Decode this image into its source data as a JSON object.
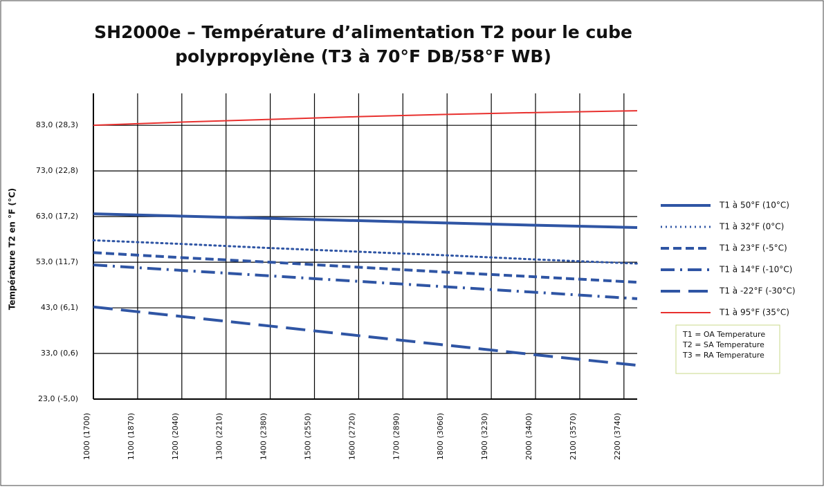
{
  "chart_data": {
    "type": "line",
    "title": [
      "SH2000e – Température d’alimentation T2 pour le cube",
      "polypropylène (T3 à 70°F DB/58°F WB)"
    ],
    "y_label": "Température T2 en °F (°C)",
    "x": [
      1000,
      1200,
      1400,
      1600,
      1800,
      2000,
      2230
    ],
    "xlim": [
      1000,
      2230
    ],
    "xticks": [
      {
        "value": 1000,
        "label": "1000 (1700)"
      },
      {
        "value": 1100,
        "label": "1100 (1870)"
      },
      {
        "value": 1200,
        "label": "1200 (2040)"
      },
      {
        "value": 1300,
        "label": "1300 (2210)"
      },
      {
        "value": 1400,
        "label": "1400 (2380)"
      },
      {
        "value": 1500,
        "label": "1500 (2550)"
      },
      {
        "value": 1600,
        "label": "1600 (2720)"
      },
      {
        "value": 1700,
        "label": "1700 (2890)"
      },
      {
        "value": 1800,
        "label": "1800 (3060)"
      },
      {
        "value": 1900,
        "label": "1900 (3230)"
      },
      {
        "value": 2000,
        "label": "2000 (3400)"
      },
      {
        "value": 2100,
        "label": "2100 (3570)"
      },
      {
        "value": 2200,
        "label": "2200 (3740)"
      }
    ],
    "ylim": [
      23,
      90
    ],
    "yticks": [
      {
        "value": 23,
        "label": "23,0 (-5,0)"
      },
      {
        "value": 33,
        "label": "33,0 (0,6)"
      },
      {
        "value": 43,
        "label": "43,0 (6,1)"
      },
      {
        "value": 53,
        "label": "53,0 (11,7)"
      },
      {
        "value": 63,
        "label": "63,0 (17,2)"
      },
      {
        "value": 73,
        "label": "73,0 (22,8)"
      },
      {
        "value": 83,
        "label": "83,0 (28,3)"
      }
    ],
    "grid": true,
    "legend": "right",
    "series": [
      {
        "name": "T1 à 50°F (10°C)",
        "color": "#2f55a4",
        "dash": "solid",
        "values": [
          63.6,
          63.1,
          62.6,
          62.1,
          61.6,
          61.1,
          60.6
        ]
      },
      {
        "name": "T1 à 32°F (0°C)",
        "color": "#2f55a4",
        "dash": "dotted",
        "values": [
          57.8,
          57.0,
          56.1,
          55.3,
          54.5,
          53.6,
          52.7
        ]
      },
      {
        "name": "T1 à 23°F (-5°C)",
        "color": "#2f55a4",
        "dash": "dashed",
        "values": [
          55.1,
          54.0,
          53.0,
          51.9,
          50.8,
          49.8,
          48.6
        ]
      },
      {
        "name": "T1 à 14°F (-10°C)",
        "color": "#2f55a4",
        "dash": "dashdot",
        "values": [
          52.4,
          51.2,
          50.0,
          48.8,
          47.6,
          46.4,
          45.0
        ]
      },
      {
        "name": "T1 à -22°F (-30°C)",
        "color": "#2f55a4",
        "dash": "longdash",
        "values": [
          43.2,
          41.1,
          39.0,
          36.9,
          34.8,
          32.7,
          30.4
        ]
      },
      {
        "name": "T1 à 95°F (35°C)",
        "color": "#e8302e",
        "dash": "thin",
        "values": [
          83.0,
          83.7,
          84.3,
          84.9,
          85.4,
          85.8,
          86.2
        ]
      }
    ],
    "note": [
      "T1 = OA Temperature",
      "T2 = SA Temperature",
      "T3 = RA Temperature"
    ]
  }
}
